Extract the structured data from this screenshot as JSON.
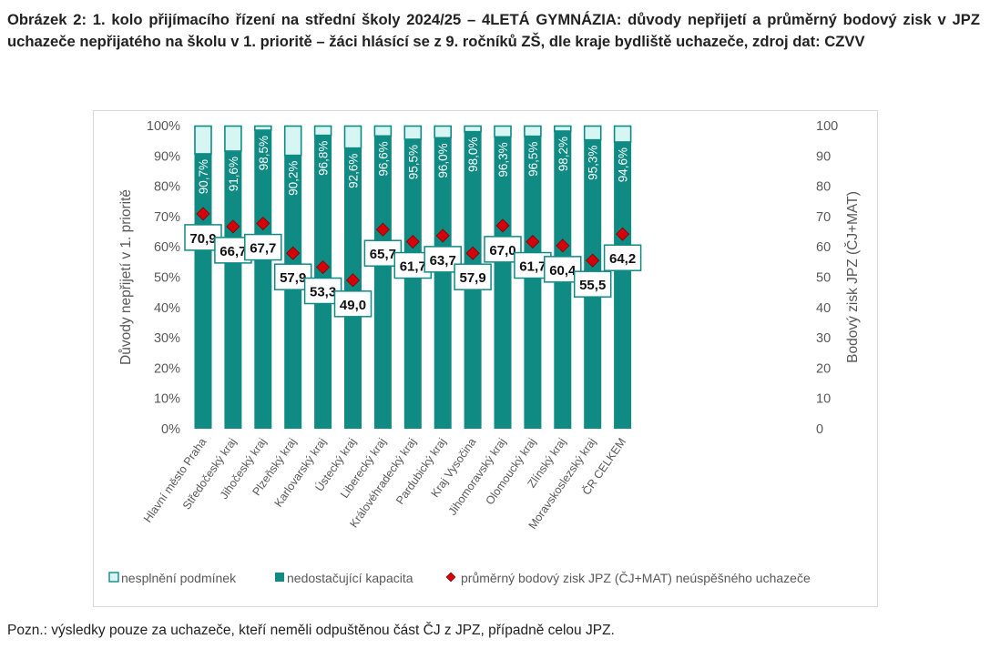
{
  "caption": "Obrázek 2: 1. kolo přijímacího řízení na střední školy 2024/25 – 4LETÁ GYMNÁZIA: důvody nepřijetí a průměrný bodový zisk v JPZ uchazeče nepřijatého na školu v 1. prioritě – žáci hlásící se z 9. ročníků ZŠ, dle kraje bydliště uchazeče, zdroj dat: CZVV",
  "note": "Pozn.: výsledky pouze za uchazeče, kteří neměli odpuštěnou část ČJ z JPZ, případně celou JPZ.",
  "colors": {
    "teal": "#0f8b84",
    "light_teal": "#d7f6f3",
    "diamond": "#d6000a",
    "axis_text": "#595959",
    "grid": "#d9d9d9"
  },
  "chart_data": {
    "type": "bar",
    "stacked": true,
    "categories": [
      "Hlavní město Praha",
      "Středočeský kraj",
      "Jihočeský kraj",
      "Plzeňský kraj",
      "Karlovarský kraj",
      "Ústecký kraj",
      "Liberecký kraj",
      "Královéhradecký kraj",
      "Pardubický kraj",
      "Kraj Vysočina",
      "Jihomoravský kraj",
      "Olomoucký kraj",
      "Zlínský kraj",
      "Moravskoslezský kraj",
      "ČR CELKEM"
    ],
    "series": [
      {
        "name": "nedostačující kapacita",
        "axis": "left",
        "values": [
          90.7,
          91.6,
          98.5,
          90.2,
          96.8,
          92.6,
          96.6,
          95.5,
          96.0,
          98.0,
          96.3,
          96.5,
          98.2,
          95.3,
          94.6
        ],
        "labels": [
          "90,7%",
          "91,6%",
          "98,5%",
          "90,2%",
          "96,8%",
          "92,6%",
          "96,6%",
          "95,5%",
          "96,0%",
          "98,0%",
          "96,3%",
          "96,5%",
          "98,2%",
          "95,3%",
          "94,6%"
        ]
      },
      {
        "name": "nesplnění podmínek",
        "axis": "left",
        "values": [
          9.3,
          8.4,
          1.5,
          9.8,
          3.2,
          7.4,
          3.4,
          4.5,
          4.0,
          2.0,
          3.7,
          3.5,
          1.8,
          4.7,
          5.4
        ]
      },
      {
        "name": "průměrný bodový zisk JPZ (ČJ+MAT) neúspěšného uchazeče",
        "axis": "right",
        "type": "scatter",
        "values": [
          70.9,
          66.7,
          67.7,
          57.9,
          53.3,
          49.0,
          65.7,
          61.7,
          63.7,
          57.9,
          67.0,
          61.7,
          60.4,
          55.5,
          64.2
        ],
        "labels": [
          "70,9",
          "66,7",
          "67,7",
          "57,9",
          "53,3",
          "49,0",
          "65,7",
          "61,7",
          "63,7",
          "57,9",
          "67,0",
          "61,7",
          "60,4",
          "55,5",
          "64,2"
        ]
      }
    ],
    "ylabel": "Důvody nepřijetí v 1. prioritě",
    "y2label": "Bodový zisk JPZ (ČJ+MAT)",
    "ylim": [
      0,
      100
    ],
    "y2lim": [
      0,
      100
    ],
    "yticks": [
      "0%",
      "10%",
      "20%",
      "30%",
      "40%",
      "50%",
      "60%",
      "70%",
      "80%",
      "90%",
      "100%"
    ],
    "y2ticks": [
      "0",
      "10",
      "20",
      "30",
      "40",
      "50",
      "60",
      "70",
      "80",
      "90",
      "100"
    ],
    "grid": false,
    "legend_position": "bottom",
    "legend": [
      "nesplnění podmínek",
      "nedostačující kapacita",
      "průměrný bodový zisk JPZ (ČJ+MAT) neúspěšného uchazeče"
    ]
  }
}
